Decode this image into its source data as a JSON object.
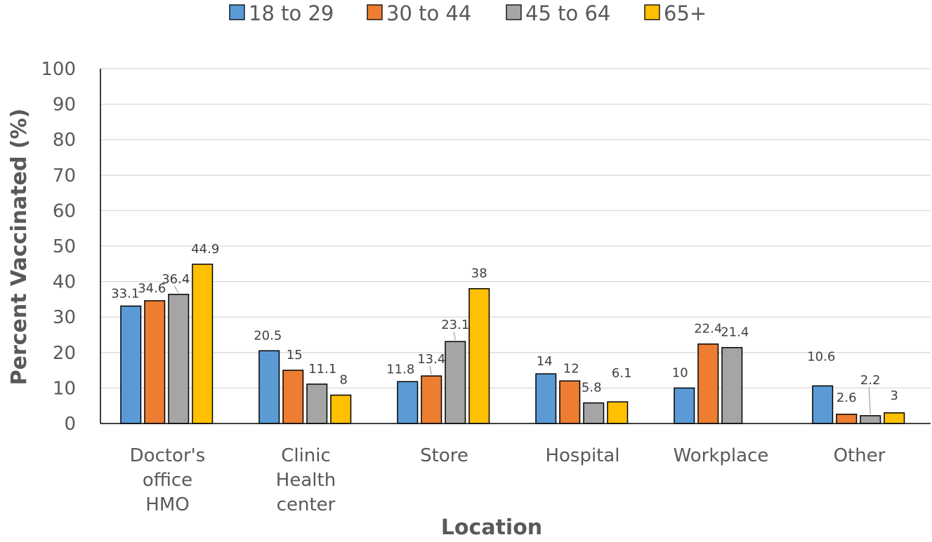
{
  "chart_data": {
    "type": "bar",
    "title": "",
    "xlabel": "Location",
    "ylabel": "Percent Vaccinated (%)",
    "ylim": [
      0,
      100
    ],
    "yticks": [
      "0",
      "10",
      "20",
      "30",
      "40",
      "50",
      "60",
      "70",
      "80",
      "90",
      "100"
    ],
    "grid": true,
    "legend_position": "top",
    "categories": [
      [
        "Doctor's",
        "office",
        "HMO"
      ],
      [
        "Clinic",
        "Health",
        "center"
      ],
      [
        "Store"
      ],
      [
        "Hospital"
      ],
      [
        "Workplace"
      ],
      [
        "Other"
      ]
    ],
    "series": [
      {
        "name": "18 to 29",
        "color": "#5b9bd5",
        "values": [
          33.1,
          20.5,
          11.8,
          14,
          10,
          10.6
        ]
      },
      {
        "name": "30 to 44",
        "color": "#ed7d31",
        "values": [
          34.6,
          15,
          13.4,
          12,
          22.4,
          2.6
        ]
      },
      {
        "name": "45 to 64",
        "color": "#a5a5a5",
        "values": [
          36.4,
          11.1,
          23.1,
          5.8,
          21.4,
          2.2
        ]
      },
      {
        "name": "65+",
        "color": "#ffc000",
        "values": [
          44.9,
          8,
          38,
          6.1,
          null,
          3
        ]
      }
    ]
  }
}
